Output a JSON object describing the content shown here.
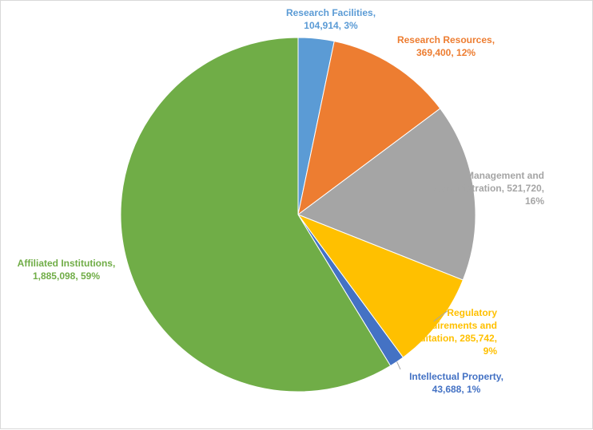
{
  "chart_data": {
    "type": "pie",
    "title": "",
    "slices": [
      {
        "name": "Research Facilities",
        "value": 104914,
        "value_text": "104,914",
        "percent": "3%",
        "color": "#5b9bd5"
      },
      {
        "name": "Research Resources",
        "value": 369400,
        "value_text": "369,400",
        "percent": "12%",
        "color": "#ed7d31"
      },
      {
        "name": "Management and Administration",
        "value": 521720,
        "value_text": "521,720",
        "percent": "16%",
        "color": "#a5a5a5"
      },
      {
        "name": "Regulatory Requirements and Accreditation",
        "value": 285742,
        "value_text": "285,742",
        "percent": "9%",
        "color": "#ffc000"
      },
      {
        "name": "Intellectual Property",
        "value": 43688,
        "value_text": "43,688",
        "percent": "1%",
        "color": "#4472c4"
      },
      {
        "name": "Affiliated Institutions",
        "value": 1885098,
        "value_text": "1,885,098",
        "percent": "59%",
        "color": "#70ad47"
      }
    ]
  },
  "labels": [
    {
      "lines": [
        "Research Facilities,",
        "104,914, 3%"
      ]
    },
    {
      "lines": [
        "Research Resources,",
        "369,400, 12%"
      ]
    },
    {
      "lines": [
        "Management and",
        "Administration, 521,720,",
        "16%"
      ]
    },
    {
      "lines": [
        "Regulatory",
        "Requirements and",
        "Accreditation, 285,742,",
        "9%"
      ]
    },
    {
      "lines": [
        "Intellectual Property,",
        "43,688, 1%"
      ]
    },
    {
      "lines": [
        "Affiliated Institutions,",
        "1,885,098, 59%"
      ]
    }
  ]
}
